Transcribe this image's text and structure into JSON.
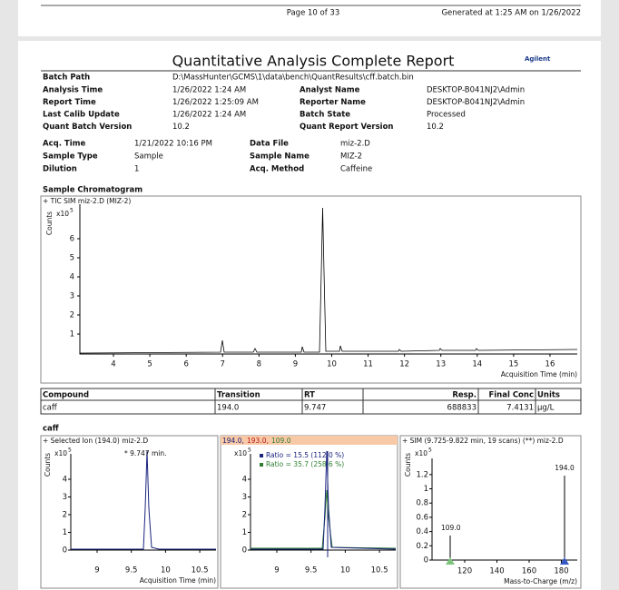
{
  "footer": {
    "page": "Page 10 of 33",
    "generated": "Generated at 1:25 AM on 1/26/2022"
  },
  "header": {
    "title": "Quantitative Analysis Complete Report",
    "logo": "Agilent"
  },
  "batch_info": {
    "batch_path": {
      "label": "Batch Path",
      "value": "D:\\MassHunter\\GCMS\\1\\data\\bench\\QuantResults\\cff.batch.bin"
    },
    "rows": [
      [
        {
          "label": "Analysis Time",
          "value": "1/26/2022 1:24 AM"
        },
        {
          "label": "Analyst Name",
          "value": "DESKTOP-B041NJ2\\Admin"
        }
      ],
      [
        {
          "label": "Report Time",
          "value": "1/26/2022 1:25:09 AM"
        },
        {
          "label": "Reporter Name",
          "value": "DESKTOP-B041NJ2\\Admin"
        }
      ],
      [
        {
          "label": "Last Calib Update",
          "value": "1/26/2022 1:24 AM"
        },
        {
          "label": "Batch State",
          "value": "Processed"
        }
      ],
      [
        {
          "label": "Quant Batch Version",
          "value": "10.2"
        },
        {
          "label": "Quant Report Version",
          "value": "10.2"
        }
      ]
    ]
  },
  "sample_info": {
    "rows": [
      [
        {
          "label": "Acq. Time",
          "value": "1/21/2022 10:16 PM"
        },
        {
          "label": "Data File",
          "value": "miz-2.D"
        }
      ],
      [
        {
          "label": "Sample Type",
          "value": "Sample"
        },
        {
          "label": "Sample Name",
          "value": "MIZ-2"
        }
      ],
      [
        {
          "label": "Dilution",
          "value": "1"
        },
        {
          "label": "Acq. Method",
          "value": "Caffeine"
        }
      ]
    ]
  },
  "chromatogram": {
    "title": "Sample Chromatogram",
    "trace": "+ TIC SIM miz-2.D (MIZ-2)",
    "y_label": "Counts",
    "scale": "x10",
    "scale_exp": "5",
    "yticks": [
      "1",
      "2",
      "3",
      "4",
      "5",
      "6"
    ],
    "xticks": [
      "4",
      "5",
      "6",
      "7",
      "8",
      "9",
      "10",
      "11",
      "12",
      "13",
      "14",
      "15",
      "16"
    ],
    "x_label": "Acquisition Time (min)"
  },
  "table": {
    "header": [
      "Compound",
      "Transition",
      "RT",
      "Resp.",
      "Final Conc",
      "Units"
    ],
    "rows": [
      [
        "caff",
        "194.0",
        "9.747",
        "688833",
        "7.4131",
        "µg/L"
      ]
    ]
  },
  "compound": {
    "name": "caff",
    "panels": [
      {
        "title": "+ Selected Ion (194.0) miz-2.D",
        "scale": "x10",
        "scale_exp": "5",
        "y_label": "Counts",
        "annotation": "* 9.747 min.",
        "yticks": [
          "0",
          "1",
          "2",
          "3",
          "4"
        ],
        "xticks": [
          "9",
          "9.5",
          "10",
          "10.5"
        ],
        "x_label": "Acquisition Time (min)"
      },
      {
        "ions": [
          "194.0,",
          "193.0,",
          "109.0"
        ],
        "scale": "x10",
        "scale_exp": "5",
        "ratios": [
          "Ratio = 15.5 (112.0 %)",
          "Ratio = 35.7 (258.6 %)"
        ],
        "yticks": [
          "0",
          "1",
          "2",
          "3",
          "4"
        ],
        "xticks": [
          "9",
          "9.5",
          "10",
          "10.5"
        ]
      },
      {
        "title": "+ SIM (9.725-9.822 min, 19 scans) (**) miz-2.D",
        "scale": "x10",
        "scale_exp": "5",
        "y_label": "Counts",
        "peak_labels": [
          "109.0",
          "194.0"
        ],
        "yticks": [
          "0",
          "0.2",
          "0.4",
          "0.6",
          "0.8",
          "1",
          "1.2"
        ],
        "xticks": [
          "120",
          "140",
          "160",
          "180"
        ],
        "x_label": "Mass-to-Charge (m/z)"
      }
    ]
  }
}
